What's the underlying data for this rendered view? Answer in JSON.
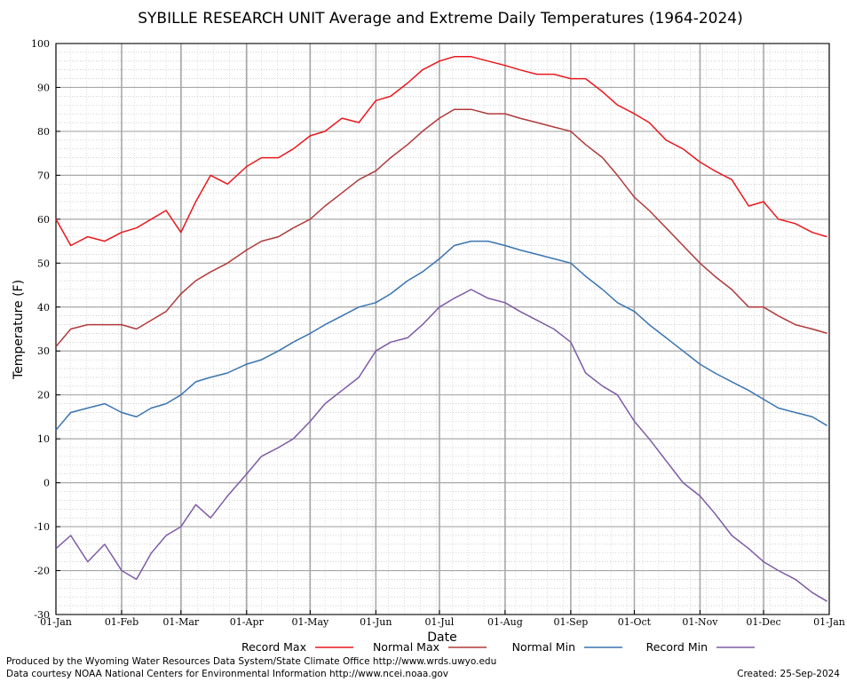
{
  "chart_data": {
    "type": "line",
    "title": "SYBILLE RESEARCH UNIT Average and Extreme Daily Temperatures (1964-2024)",
    "xlabel": "Date",
    "ylabel": "Temperature (F)",
    "ylim": [
      -30,
      100
    ],
    "yticks": [
      100,
      90,
      80,
      70,
      60,
      50,
      40,
      30,
      20,
      10,
      0,
      -10,
      -20,
      -30
    ],
    "xlim": [
      1,
      366
    ],
    "xticks": [
      {
        "day": 1,
        "label": "01-Jan"
      },
      {
        "day": 32,
        "label": "01-Feb"
      },
      {
        "day": 60,
        "label": "01-Mar"
      },
      {
        "day": 91,
        "label": "01-Apr"
      },
      {
        "day": 121,
        "label": "01-May"
      },
      {
        "day": 152,
        "label": "01-Jun"
      },
      {
        "day": 182,
        "label": "01-Jul"
      },
      {
        "day": 213,
        "label": "01-Aug"
      },
      {
        "day": 244,
        "label": "01-Sep"
      },
      {
        "day": 274,
        "label": "01-Oct"
      },
      {
        "day": 305,
        "label": "01-Nov"
      },
      {
        "day": 335,
        "label": "01-Dec"
      },
      {
        "day": 366,
        "label": "01-Jan"
      }
    ],
    "grid": true,
    "legend_position": "bottom",
    "x_sample_days": [
      1,
      8,
      16,
      24,
      32,
      39,
      46,
      53,
      60,
      67,
      74,
      82,
      91,
      98,
      106,
      113,
      121,
      128,
      136,
      144,
      152,
      159,
      167,
      174,
      182,
      189,
      197,
      205,
      213,
      220,
      228,
      236,
      244,
      251,
      259,
      266,
      274,
      281,
      289,
      297,
      305,
      312,
      320,
      328,
      335,
      342,
      350,
      358,
      365
    ],
    "series": [
      {
        "name": "Record Max",
        "color": "#e8181c",
        "values": [
          60,
          54,
          56,
          55,
          57,
          58,
          60,
          62,
          57,
          64,
          70,
          68,
          72,
          74,
          74,
          76,
          79,
          80,
          83,
          82,
          87,
          88,
          91,
          94,
          96,
          97,
          97,
          96,
          95,
          94,
          93,
          93,
          92,
          92,
          89,
          86,
          84,
          82,
          78,
          76,
          73,
          71,
          69,
          63,
          64,
          60,
          59,
          57,
          56
        ]
      },
      {
        "name": "Normal Max",
        "color": "#b03a3a",
        "values": [
          31,
          35,
          36,
          36,
          36,
          35,
          37,
          39,
          43,
          46,
          48,
          50,
          53,
          55,
          56,
          58,
          60,
          63,
          66,
          69,
          71,
          74,
          77,
          80,
          83,
          85,
          85,
          84,
          84,
          83,
          82,
          81,
          80,
          77,
          74,
          70,
          65,
          62,
          58,
          54,
          50,
          47,
          44,
          40,
          40,
          38,
          36,
          35,
          34
        ]
      },
      {
        "name": "Normal Min",
        "color": "#3a74b0",
        "values": [
          12,
          16,
          17,
          18,
          16,
          15,
          17,
          18,
          20,
          23,
          24,
          25,
          27,
          28,
          30,
          32,
          34,
          36,
          38,
          40,
          41,
          43,
          46,
          48,
          51,
          54,
          55,
          55,
          54,
          53,
          52,
          51,
          50,
          47,
          44,
          41,
          39,
          36,
          33,
          30,
          27,
          25,
          23,
          21,
          19,
          17,
          16,
          15,
          13
        ]
      },
      {
        "name": "Record Min",
        "color": "#7d5ba6",
        "values": [
          -15,
          -12,
          -18,
          -14,
          -20,
          -22,
          -16,
          -12,
          -10,
          -5,
          -8,
          -3,
          2,
          6,
          8,
          10,
          14,
          18,
          21,
          24,
          30,
          32,
          33,
          36,
          40,
          42,
          44,
          42,
          41,
          39,
          37,
          35,
          32,
          25,
          22,
          20,
          14,
          10,
          5,
          0,
          -3,
          -7,
          -12,
          -15,
          -18,
          -20,
          -22,
          -25,
          -27
        ]
      }
    ]
  },
  "credits": {
    "line1": "Produced by the Wyoming Water Resources Data System/State Climate Office http://www.wrds.uwyo.edu",
    "line2": "Data courtesy NOAA National Centers for Environmental Information http://www.ncei.noaa.gov",
    "created": "Created:  25-Sep-2024"
  }
}
